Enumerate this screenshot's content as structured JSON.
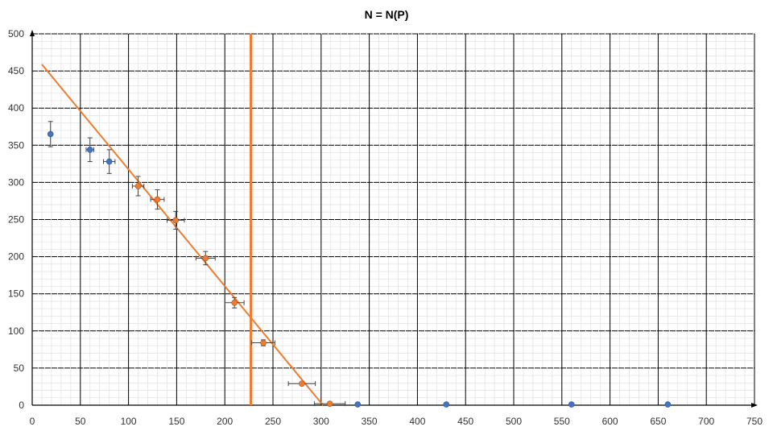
{
  "chart_data": {
    "type": "scatter",
    "title": "N = N(P)",
    "xlabel": "",
    "ylabel": "",
    "xlim": [
      0,
      750
    ],
    "ylim": [
      0,
      500
    ],
    "x_ticks": [
      0,
      50,
      100,
      150,
      200,
      250,
      300,
      350,
      400,
      450,
      500,
      550,
      600,
      650,
      700,
      750
    ],
    "y_ticks": [
      0,
      50,
      100,
      150,
      200,
      250,
      300,
      350,
      400,
      450,
      500
    ],
    "grid": true,
    "series": [
      {
        "color": "#4472C4",
        "points": [
          {
            "x": 19,
            "y": 365,
            "yerr": 17
          },
          {
            "x": 60,
            "y": 344,
            "yerr": 16,
            "xerr": 4
          },
          {
            "x": 80,
            "y": 328,
            "yerr": 16,
            "xerr": 6
          },
          {
            "x": 338,
            "y": 1
          },
          {
            "x": 430,
            "y": 1
          },
          {
            "x": 560,
            "y": 1
          },
          {
            "x": 660,
            "y": 1
          }
        ]
      },
      {
        "color": "#ED7D31",
        "points": [
          {
            "x": 110,
            "y": 295,
            "yerr": 13,
            "xerr": 6
          },
          {
            "x": 130,
            "y": 277,
            "yerr": 13,
            "xerr": 7
          },
          {
            "x": 149,
            "y": 249,
            "yerr": 12,
            "xerr": 9
          },
          {
            "x": 180,
            "y": 198,
            "yerr": 9,
            "xerr": 10
          },
          {
            "x": 210,
            "y": 138,
            "yerr": 7,
            "xerr": 10
          },
          {
            "x": 240,
            "y": 84,
            "yerr": 4,
            "xerr": 12
          },
          {
            "x": 280,
            "y": 29,
            "xerr": 14
          },
          {
            "x": 309,
            "y": 2,
            "xerr": 16
          }
        ]
      }
    ],
    "fit_line": {
      "color": "#ED7D31",
      "x": [
        10,
        302
      ],
      "y": [
        459,
        0
      ]
    },
    "vertical_line": {
      "color": "#ED7D31",
      "x": 227
    }
  }
}
